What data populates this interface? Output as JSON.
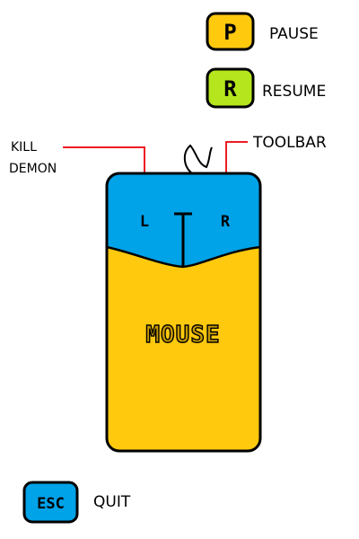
{
  "keys": {
    "pause": {
      "key": "P",
      "label": "PAUSE",
      "color": "#ffc90e"
    },
    "resume": {
      "key": "R",
      "label": "RESUME",
      "color": "#b5e61d"
    },
    "esc": {
      "key": "ESC",
      "label": "QUIT",
      "color": "#00a2e8"
    }
  },
  "mouse": {
    "label": "MOUSE",
    "left_button_key": "L",
    "right_button_key": "R",
    "button_color": "#00a2e8",
    "body_color": "#ffc90e"
  },
  "annotations": {
    "left_line1": "KILL",
    "left_line2": "DEMON",
    "right": "TOOLBAR",
    "arrow_color": "#ed1c24"
  }
}
